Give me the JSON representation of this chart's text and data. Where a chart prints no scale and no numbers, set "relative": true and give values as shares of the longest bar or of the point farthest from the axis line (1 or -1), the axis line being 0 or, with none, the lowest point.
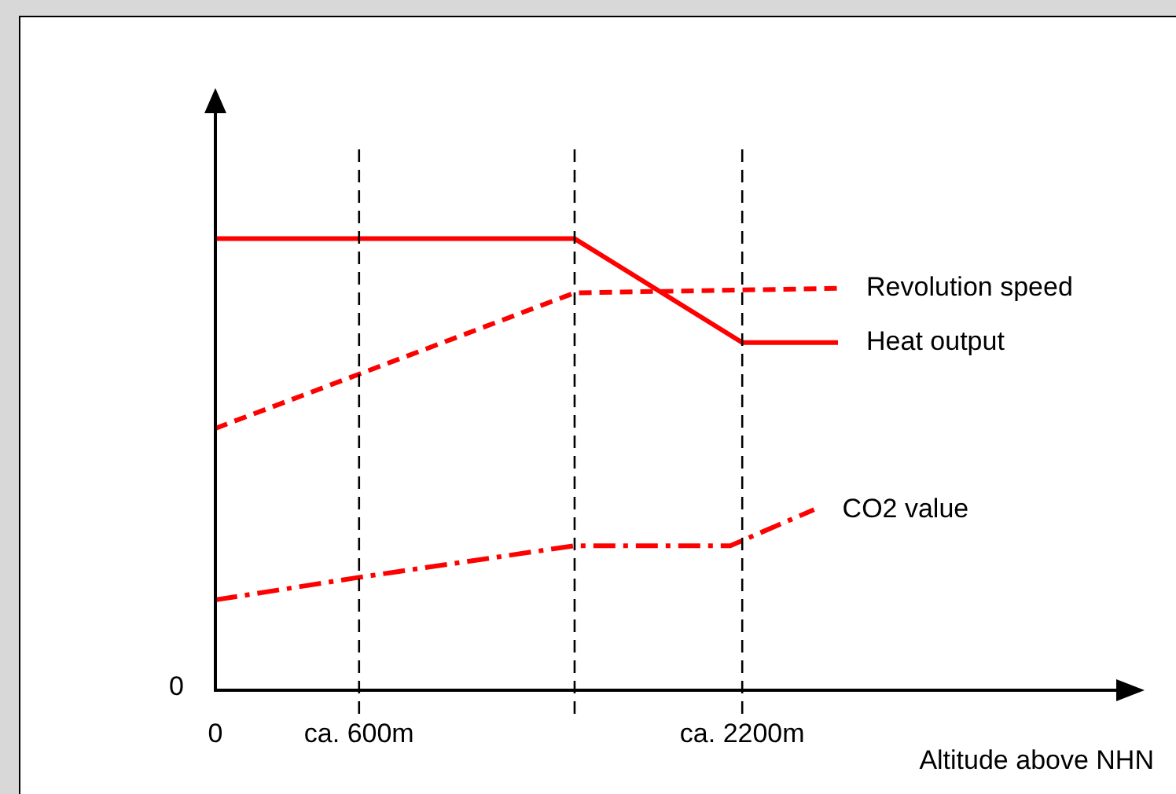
{
  "chart_data": {
    "type": "line",
    "relative": true,
    "xlabel": "Altitude above NHN",
    "xlim": [
      0,
      3775
    ],
    "xticks": [
      0,
      {
        "value": 600,
        "label": "ca. 600m"
      },
      {
        "value": 2200,
        "label": "ca. 2200m"
      }
    ],
    "grid": false,
    "legend": false,
    "marker": "none",
    "series": [
      {
        "name": "Revolution speed",
        "color": "#ff0000",
        "line_style": "dashed",
        "x": [
          0,
          1500,
          2600
        ],
        "values": [
          0.58,
          0.88,
          0.89
        ]
      },
      {
        "name": "Heat output",
        "color": "#ff0000",
        "line_style": "solid",
        "x": [
          0,
          1500,
          2200,
          2600
        ],
        "values": [
          1,
          1,
          0.77,
          0.77
        ]
      },
      {
        "name": "CO2 value",
        "color": "#ff0000",
        "line_style": "dashdot",
        "x": [
          0,
          600,
          1500,
          2150,
          2500
        ],
        "values": [
          0.2,
          0.25,
          0.32,
          0.32,
          0.4
        ]
      }
    ],
    "ref_lines": [
      {
        "axis": "x",
        "value": 600,
        "label": null,
        "color": "#000000",
        "line_style": "dashed"
      },
      {
        "axis": "x",
        "value": 1500,
        "label": null,
        "color": "#000000",
        "line_style": "dashed"
      },
      {
        "axis": "x",
        "value": 2200,
        "label": null,
        "color": "#000000",
        "line_style": "dashed"
      }
    ],
    "annotations": [
      "0"
    ]
  }
}
